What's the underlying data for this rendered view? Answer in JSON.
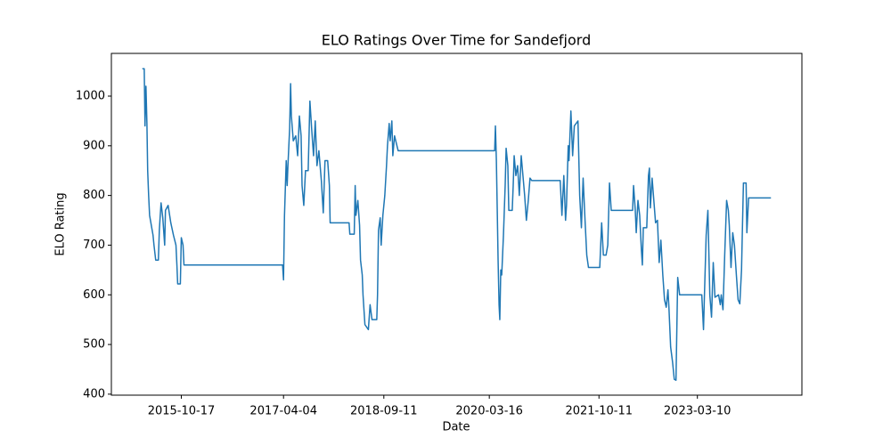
{
  "chart_data": {
    "type": "line",
    "title": "ELO Ratings Over Time for Sandefjord",
    "x_label": "Date",
    "y_label": "ELO Rating",
    "color": "#1f77b4",
    "xlim": [
      "2014-10-16",
      "2024-09-07"
    ],
    "xticks": [
      "2015-10-17",
      "2017-04-04",
      "2018-09-11",
      "2020-03-16",
      "2021-10-11",
      "2023-03-10"
    ],
    "ylim": [
      398,
      1086
    ],
    "yticks": [
      400,
      500,
      600,
      700,
      800,
      900,
      1000
    ],
    "x": [
      "2015-03-27",
      "2015-04-06",
      "2015-04-10",
      "2015-04-15",
      "2015-04-20",
      "2015-04-24",
      "2015-04-29",
      "2015-05-04",
      "2015-05-13",
      "2015-05-22",
      "2015-05-27",
      "2015-06-05",
      "2015-06-19",
      "2015-06-24",
      "2015-06-28",
      "2015-07-03",
      "2015-07-12",
      "2015-07-22",
      "2015-07-26",
      "2015-08-09",
      "2015-08-23",
      "2015-09-06",
      "2015-09-19",
      "2015-09-24",
      "2015-09-28",
      "2015-10-12",
      "2015-10-17",
      "2015-10-26",
      "2015-10-31",
      "2017-03-30",
      "2017-04-04",
      "2017-04-09",
      "2017-04-18",
      "2017-04-23",
      "2017-04-27",
      "2017-05-06",
      "2017-05-11",
      "2017-05-15",
      "2017-05-25",
      "2017-06-07",
      "2017-06-17",
      "2017-06-26",
      "2017-07-05",
      "2017-07-10",
      "2017-07-19",
      "2017-07-28",
      "2017-08-11",
      "2017-08-20",
      "2017-08-30",
      "2017-09-08",
      "2017-09-17",
      "2017-09-26",
      "2017-10-06",
      "2017-10-19",
      "2017-10-29",
      "2017-11-07",
      "2017-11-21",
      "2017-11-30",
      "2017-12-04",
      "2018-03-13",
      "2018-03-17",
      "2018-04-09",
      "2018-04-14",
      "2018-04-18",
      "2018-04-28",
      "2018-05-07",
      "2018-05-12",
      "2018-05-21",
      "2018-05-25",
      "2018-06-04",
      "2018-06-22",
      "2018-07-01",
      "2018-07-11",
      "2018-08-05",
      "2018-08-09",
      "2018-08-14",
      "2018-08-23",
      "2018-08-28",
      "2018-09-06",
      "2018-09-16",
      "2018-09-25",
      "2018-09-30",
      "2018-10-09",
      "2018-10-14",
      "2018-10-23",
      "2018-10-28",
      "2018-11-06",
      "2018-11-25",
      "2020-04-13",
      "2020-04-17",
      "2020-04-22",
      "2020-04-27",
      "2020-05-01",
      "2020-05-06",
      "2020-05-10",
      "2020-05-15",
      "2020-05-20",
      "2020-05-29",
      "2020-06-07",
      "2020-06-12",
      "2020-06-21",
      "2020-06-26",
      "2020-07-14",
      "2020-07-19",
      "2020-07-24",
      "2020-08-02",
      "2020-08-11",
      "2020-08-20",
      "2020-08-30",
      "2020-09-08",
      "2020-09-17",
      "2020-09-26",
      "2020-10-06",
      "2020-10-15",
      "2020-10-24",
      "2021-03-22",
      "2021-03-31",
      "2021-04-10",
      "2021-04-19",
      "2021-04-24",
      "2021-05-03",
      "2021-05-07",
      "2021-05-17",
      "2021-05-26",
      "2021-06-04",
      "2021-06-23",
      "2021-07-02",
      "2021-07-11",
      "2021-07-20",
      "2021-07-30",
      "2021-08-08",
      "2021-08-17",
      "2021-10-15",
      "2021-10-25",
      "2021-11-03",
      "2021-11-17",
      "2021-11-26",
      "2021-12-05",
      "2021-12-14",
      "2022-04-05",
      "2022-04-10",
      "2022-04-19",
      "2022-04-24",
      "2022-05-03",
      "2022-05-12",
      "2022-05-21",
      "2022-05-26",
      "2022-05-31",
      "2022-06-18",
      "2022-06-27",
      "2022-07-02",
      "2022-07-07",
      "2022-07-16",
      "2022-07-25",
      "2022-08-03",
      "2022-08-13",
      "2022-08-22",
      "2022-08-31",
      "2022-09-10",
      "2022-09-19",
      "2022-09-28",
      "2022-10-07",
      "2022-10-12",
      "2022-10-21",
      "2022-10-31",
      "2022-11-09",
      "2022-11-18",
      "2022-11-27",
      "2022-12-07",
      "2023-04-02",
      "2023-04-11",
      "2023-04-16",
      "2023-04-25",
      "2023-05-04",
      "2023-05-14",
      "2023-05-23",
      "2023-06-01",
      "2023-06-10",
      "2023-06-29",
      "2023-07-08",
      "2023-07-13",
      "2023-07-22",
      "2023-07-31",
      "2023-08-10",
      "2023-08-19",
      "2023-08-24",
      "2023-09-02",
      "2023-09-11",
      "2023-09-20",
      "2023-09-30",
      "2023-10-09",
      "2023-10-18",
      "2023-10-27",
      "2023-11-01",
      "2023-11-06",
      "2023-11-20",
      "2023-11-24",
      "2023-12-03",
      "2024-03-29"
    ],
    "values": [
      1055,
      1055,
      940,
      1020,
      945,
      850,
      800,
      760,
      740,
      720,
      700,
      670,
      670,
      730,
      755,
      785,
      755,
      700,
      770,
      780,
      745,
      720,
      700,
      660,
      622,
      622,
      715,
      700,
      660,
      660,
      630,
      760,
      870,
      820,
      860,
      935,
      1025,
      960,
      910,
      920,
      880,
      960,
      920,
      820,
      780,
      850,
      850,
      990,
      930,
      880,
      950,
      860,
      890,
      830,
      765,
      870,
      870,
      820,
      745,
      745,
      722,
      722,
      820,
      760,
      790,
      740,
      670,
      640,
      600,
      540,
      530,
      580,
      550,
      550,
      600,
      730,
      755,
      700,
      760,
      800,
      860,
      900,
      945,
      910,
      950,
      880,
      920,
      890,
      890,
      940,
      870,
      760,
      670,
      580,
      550,
      650,
      640,
      720,
      820,
      895,
      860,
      770,
      770,
      820,
      880,
      840,
      860,
      800,
      880,
      840,
      800,
      750,
      790,
      835,
      830,
      830,
      760,
      840,
      750,
      780,
      900,
      870,
      970,
      880,
      940,
      950,
      800,
      735,
      835,
      750,
      680,
      655,
      655,
      745,
      680,
      680,
      700,
      825,
      770,
      770,
      820,
      770,
      725,
      790,
      760,
      690,
      660,
      735,
      735,
      840,
      855,
      775,
      835,
      790,
      745,
      750,
      665,
      710,
      640,
      590,
      575,
      610,
      575,
      495,
      465,
      430,
      428,
      635,
      600,
      600,
      530,
      600,
      720,
      770,
      600,
      555,
      665,
      595,
      600,
      580,
      600,
      570,
      680,
      790,
      770,
      740,
      655,
      725,
      700,
      640,
      590,
      582,
      650,
      740,
      825,
      825,
      725,
      795,
      795
    ]
  }
}
